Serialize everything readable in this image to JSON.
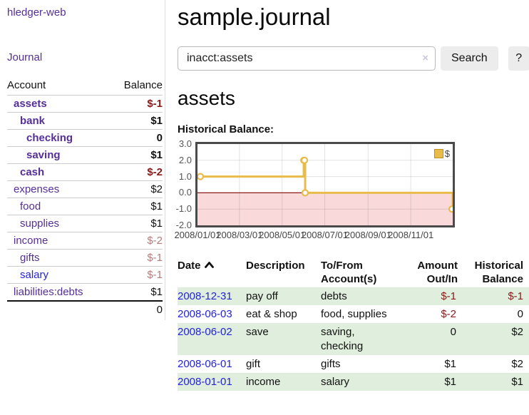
{
  "app": {
    "title": "hledger-web"
  },
  "colors": {
    "link_purple": "#552e99",
    "link_blue": "#2222e0",
    "negative_strong": "#8b1a1a",
    "negative_soft": "#b87a7a",
    "row_green": "#e0eedd",
    "accent_gold": "#e8bb4a"
  },
  "sidebar": {
    "journal_link": "Journal",
    "headers": {
      "account": "Account",
      "balance": "Balance"
    },
    "accounts": [
      {
        "name": "assets",
        "balance": "$-1",
        "depth": 1,
        "bold": true,
        "neg": "strong",
        "blue": false
      },
      {
        "name": "bank",
        "balance": "$1",
        "depth": 2,
        "bold": true,
        "neg": "",
        "blue": false
      },
      {
        "name": "checking",
        "balance": "0",
        "depth": 3,
        "bold": true,
        "neg": "",
        "blue": false
      },
      {
        "name": "saving",
        "balance": "$1",
        "depth": 3,
        "bold": true,
        "neg": "",
        "blue": false
      },
      {
        "name": "cash",
        "balance": "$-2",
        "depth": 2,
        "bold": true,
        "neg": "strong",
        "blue": false
      },
      {
        "name": "expenses",
        "balance": "$2",
        "depth": 1,
        "bold": false,
        "neg": "",
        "blue": false
      },
      {
        "name": "food",
        "balance": "$1",
        "depth": 2,
        "bold": false,
        "neg": "",
        "blue": false
      },
      {
        "name": "supplies",
        "balance": "$1",
        "depth": 2,
        "bold": false,
        "neg": "",
        "blue": false
      },
      {
        "name": "income",
        "balance": "$-2",
        "depth": 1,
        "bold": false,
        "neg": "soft",
        "blue": false
      },
      {
        "name": "gifts",
        "balance": "$-1",
        "depth": 2,
        "bold": false,
        "neg": "soft",
        "blue": false
      },
      {
        "name": "salary",
        "balance": "$-1",
        "depth": 2,
        "bold": false,
        "neg": "soft",
        "blue": true
      },
      {
        "name": "liabilities:debts",
        "balance": "$1",
        "depth": 1,
        "bold": false,
        "neg": "",
        "blue": false
      }
    ],
    "total": "0"
  },
  "header": {
    "title": "sample.journal",
    "search": {
      "value": "inacct:assets",
      "clear_icon": "×",
      "button_label": "Search",
      "help_label": "?"
    }
  },
  "main": {
    "account_heading": "assets",
    "chart_heading": "Historical Balance:"
  },
  "chart_data": {
    "type": "line",
    "step": true,
    "title": "Historical Balance",
    "legend": {
      "label": "$",
      "position": "top-right"
    },
    "series": [
      {
        "name": "$",
        "color": "#e8bb4a",
        "points": [
          [
            "2008-01-01",
            1.0
          ],
          [
            "2008-06-01",
            2.0
          ],
          [
            "2008-06-02",
            2.0
          ],
          [
            "2008-06-03",
            0.0
          ],
          [
            "2008-12-31",
            -1.0
          ]
        ]
      }
    ],
    "ylim": [
      -2.0,
      3.0
    ],
    "yticks": [
      3.0,
      2.0,
      1.0,
      0.0,
      -1.0,
      -2.0
    ],
    "ytick_labels": [
      "3.0",
      "2.0",
      "1.0",
      "0.0",
      "-1.0",
      "-2.0"
    ],
    "x_range": [
      "2008-01-01",
      "2008-12-31"
    ],
    "xticks": [
      "2008-01-01",
      "2008-03-01",
      "2008-05-01",
      "2008-07-01",
      "2008-09-01",
      "2008-11-01"
    ],
    "xtick_labels": [
      "2008/01/01",
      "2008/03/01",
      "2008/05/01",
      "2008/07/01",
      "2008/09/01",
      "2008/11/01"
    ],
    "grid": true,
    "negative_region_fill": "#f9d9d9",
    "zero_line_color": "#8b1a1a"
  },
  "register": {
    "headers": {
      "date": "Date",
      "description": "Description",
      "accounts": "To/From Account(s)",
      "amount": "Amount Out/In",
      "balance": "Historical Balance"
    },
    "sort": {
      "column": "date",
      "direction": "ascending"
    },
    "rows": [
      {
        "date": "2008-12-31",
        "description": "pay off",
        "accounts": "debts",
        "amount": "$-1",
        "balance": "$-1",
        "amount_neg": true,
        "balance_neg": true
      },
      {
        "date": "2008-06-03",
        "description": "eat & shop",
        "accounts": "food, supplies",
        "amount": "$-2",
        "balance": "0",
        "amount_neg": true,
        "balance_neg": false
      },
      {
        "date": "2008-06-02",
        "description": "save",
        "accounts": "saving, checking",
        "amount": "0",
        "balance": "$2",
        "amount_neg": false,
        "balance_neg": false
      },
      {
        "date": "2008-06-01",
        "description": "gift",
        "accounts": "gifts",
        "amount": "$1",
        "balance": "$2",
        "amount_neg": false,
        "balance_neg": false
      },
      {
        "date": "2008-01-01",
        "description": "income",
        "accounts": "salary",
        "amount": "$1",
        "balance": "$1",
        "amount_neg": false,
        "balance_neg": false
      }
    ]
  }
}
